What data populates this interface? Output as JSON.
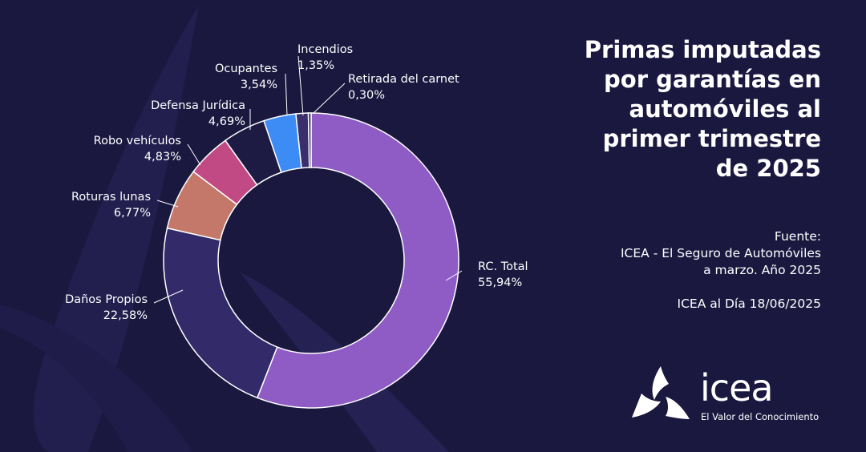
{
  "title_lines": [
    "Primas imputadas",
    "por garantías en",
    "automóviles al",
    "primer trimestre",
    "de 2025"
  ],
  "source": {
    "lines": [
      "Fuente:",
      "ICEA - El Seguro de Automóviles",
      "a marzo. Año 2025"
    ],
    "date": "ICEA al Día 18/06/2025"
  },
  "logo": {
    "name": "icea",
    "tagline": "El Valor del Conocimiento",
    "icon": "icea-triskelion-icon"
  },
  "colors": {
    "background": "#1b1840",
    "slice_outline": "#ffffff",
    "label_line": "#ffffff"
  },
  "chart_data": {
    "type": "pie",
    "donut": true,
    "start_angle_deg": 0,
    "direction": "clockwise",
    "slices": [
      {
        "label": "RC. Total",
        "pct_label": "55,94%",
        "value": 55.94,
        "color": "#8e5cc4"
      },
      {
        "label": "Daños Propios",
        "pct_label": "22,58%",
        "value": 22.58,
        "color": "#332a6a"
      },
      {
        "label": "Roturas lunas",
        "pct_label": "6,77%",
        "value": 6.77,
        "color": "#c4786a"
      },
      {
        "label": "Robo vehículos",
        "pct_label": "4,83%",
        "value": 4.83,
        "color": "#c24a84"
      },
      {
        "label": "Defensa Jurídica",
        "pct_label": "4,69%",
        "value": 4.69,
        "color": "#1d1a44"
      },
      {
        "label": "Ocupantes",
        "pct_label": "3,54%",
        "value": 3.54,
        "color": "#3d8cf5"
      },
      {
        "label": "Incendios",
        "pct_label": "1,35%",
        "value": 1.35,
        "color": "#3a2e6c"
      },
      {
        "label": "Retirada del carnet",
        "pct_label": "0,30%",
        "value": 0.3,
        "color": "#2a2456"
      }
    ]
  }
}
